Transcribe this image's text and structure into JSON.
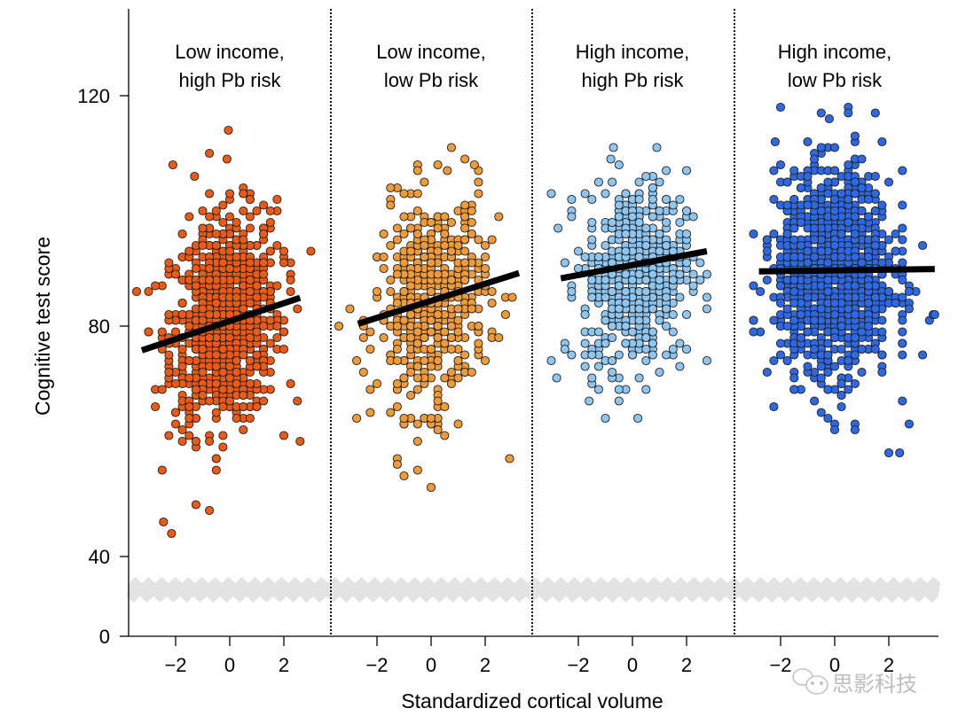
{
  "chart_data": {
    "type": "scatter",
    "xlabel": "Standardized cortical volume",
    "ylabel": "Cognitive test score",
    "y_ticks": [
      0,
      40,
      80,
      120
    ],
    "y_tick_labels": [
      "0",
      "40",
      "80",
      "120"
    ],
    "y_axis_break": [
      30,
      40
    ],
    "ylim": [
      0,
      130
    ],
    "x_ticks": [
      -2,
      0,
      2
    ],
    "x_tick_labels": [
      "−2",
      "0",
      "2"
    ],
    "xlim": [
      -3.5,
      3.9
    ],
    "grid": false,
    "legend": "none",
    "panels": [
      {
        "title_line1": "Low income,",
        "title_line2": "high Pb risk",
        "color": "#EE5A14",
        "n_points": 900,
        "x_mean": -0.2,
        "x_sd": 1.0,
        "y_mean": 81,
        "y_sd": 9,
        "trend": {
          "x": [
            -3.25,
            2.6
          ],
          "y": [
            75.8,
            84.9
          ]
        },
        "outliers": [
          {
            "x": -2.45,
            "y": 46
          },
          {
            "x": -2.15,
            "y": 44
          },
          {
            "x": -0.05,
            "y": 114
          },
          {
            "x": -2.1,
            "y": 108
          },
          {
            "x": -1.3,
            "y": 106
          },
          {
            "x": -0.1,
            "y": 109
          },
          {
            "x": 2.6,
            "y": 60
          }
        ]
      },
      {
        "title_line1": "Low income,",
        "title_line2": "low Pb risk",
        "color": "#F09A38",
        "n_points": 500,
        "x_mean": 0.0,
        "x_sd": 1.0,
        "y_mean": 84,
        "y_sd": 9,
        "trend": {
          "x": [
            -2.7,
            3.25
          ],
          "y": [
            80.4,
            89.2
          ]
        },
        "outliers": [
          {
            "x": 0.0,
            "y": 52
          },
          {
            "x": 2.9,
            "y": 57
          },
          {
            "x": -1.0,
            "y": 54
          },
          {
            "x": 1.6,
            "y": 108
          },
          {
            "x": 0.6,
            "y": 107
          }
        ]
      },
      {
        "title_line1": "High income,",
        "title_line2": "high Pb risk",
        "color": "#8EC6F2",
        "n_points": 600,
        "x_mean": 0.1,
        "x_sd": 0.95,
        "y_mean": 89,
        "y_sd": 8,
        "trend": {
          "x": [
            -2.65,
            2.75
          ],
          "y": [
            88.3,
            93.0
          ]
        },
        "outliers": [
          {
            "x": -2.8,
            "y": 71
          },
          {
            "x": 0.2,
            "y": 64
          },
          {
            "x": -1.6,
            "y": 67
          },
          {
            "x": -0.8,
            "y": 109
          },
          {
            "x": 0.9,
            "y": 111
          },
          {
            "x": -0.7,
            "y": 111
          }
        ]
      },
      {
        "title_line1": "High income,",
        "title_line2": "low Pb risk",
        "color": "#2D69E6",
        "n_points": 1400,
        "x_mean": 0.0,
        "x_sd": 1.05,
        "y_mean": 89,
        "y_sd": 8.5,
        "trend": {
          "x": [
            -2.8,
            3.7
          ],
          "y": [
            89.5,
            89.9
          ]
        },
        "outliers": [
          {
            "x": 2.0,
            "y": 58
          },
          {
            "x": 2.4,
            "y": 58
          },
          {
            "x": 0.0,
            "y": 62
          },
          {
            "x": -0.2,
            "y": 116
          },
          {
            "x": 0.5,
            "y": 117
          },
          {
            "x": 1.5,
            "y": 117
          },
          {
            "x": -2.2,
            "y": 112
          },
          {
            "x": -1.0,
            "y": 112
          },
          {
            "x": 3.7,
            "y": 82
          }
        ]
      }
    ]
  },
  "watermark": {
    "text": "思影科技",
    "icon": "wechat-icon"
  }
}
